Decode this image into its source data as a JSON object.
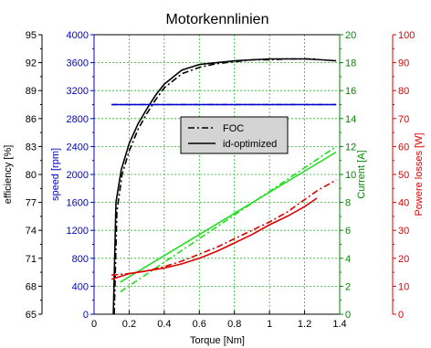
{
  "chart_data": {
    "type": "line",
    "title": "Motorkennlinien",
    "xlabel": "Torque [Nm]",
    "xlim": [
      0,
      1.4
    ],
    "xticks": [
      "0",
      "0.2",
      "0.4",
      "0.6",
      "0.8",
      "1",
      "1.2",
      "1.4"
    ],
    "xtick_values": [
      0,
      0.2,
      0.4,
      0.6,
      0.8,
      1.0,
      1.2,
      1.4
    ],
    "grid": true,
    "legend_position": "center",
    "axes": {
      "efficiency": {
        "label": "efficiency [%]",
        "lim": [
          65,
          95
        ],
        "ticks": [
          "65",
          "68",
          "71",
          "74",
          "77",
          "80",
          "83",
          "86",
          "89",
          "92",
          "95"
        ],
        "color": "#000000",
        "side": "left-outer"
      },
      "speed": {
        "label": "speed [rpm]",
        "lim": [
          0,
          4000
        ],
        "ticks": [
          "0",
          "400",
          "800",
          "1200",
          "1600",
          "2000",
          "2400",
          "2800",
          "3200",
          "3600",
          "4000"
        ],
        "color": "#0000cc",
        "side": "left-inner"
      },
      "current": {
        "label": "Current [A]",
        "lim": [
          0,
          20
        ],
        "ticks": [
          "0",
          "2",
          "4",
          "6",
          "8",
          "10",
          "12",
          "14",
          "16",
          "18",
          "20"
        ],
        "color": "#008800",
        "side": "right-inner"
      },
      "losses": {
        "label": "Powere losses [W]",
        "lim": [
          0,
          100
        ],
        "ticks": [
          "0",
          "10",
          "20",
          "30",
          "40",
          "50",
          "60",
          "70",
          "80",
          "90",
          "100"
        ],
        "color": "#dd0000",
        "side": "right-outer"
      }
    },
    "legend": [
      {
        "name": "FOC",
        "style": "dashdot"
      },
      {
        "name": "id-optimized",
        "style": "solid"
      }
    ],
    "series": [
      {
        "name": "FOC",
        "quantity": "efficiency",
        "color": "#000000",
        "style": "dashdot",
        "x": [
          0.115,
          0.13,
          0.16,
          0.2,
          0.25,
          0.3,
          0.35,
          0.4,
          0.5,
          0.6,
          0.7,
          0.8,
          0.9,
          1.0,
          1.1,
          1.2,
          1.27
        ],
        "y": [
          65,
          76,
          80,
          82.5,
          84.8,
          86.5,
          88.0,
          89.3,
          90.8,
          91.5,
          91.9,
          92.1,
          92.3,
          92.3,
          92.4,
          92.4,
          92.4
        ]
      },
      {
        "name": "id-optimized",
        "quantity": "efficiency",
        "color": "#000000",
        "style": "solid",
        "x": [
          0.11,
          0.125,
          0.155,
          0.2,
          0.25,
          0.3,
          0.35,
          0.4,
          0.5,
          0.6,
          0.7,
          0.8,
          0.9,
          1.0,
          1.1,
          1.2,
          1.3,
          1.38
        ],
        "y": [
          65,
          77,
          80.5,
          83.3,
          85.4,
          87.0,
          88.5,
          89.7,
          91.2,
          91.8,
          92.0,
          92.2,
          92.3,
          92.4,
          92.4,
          92.4,
          92.3,
          92.2
        ]
      },
      {
        "name": "FOC",
        "quantity": "speed",
        "color": "#0000cc",
        "style": "dashdot",
        "x": [
          0.1,
          1.38
        ],
        "y": [
          3000,
          3000
        ]
      },
      {
        "name": "id-optimized",
        "quantity": "speed",
        "color": "#0000cc",
        "style": "solid",
        "x": [
          0.1,
          1.38
        ],
        "y": [
          3000,
          3000
        ]
      },
      {
        "name": "FOC",
        "quantity": "current",
        "color": "#22dd22",
        "style": "dashdot",
        "x": [
          0.15,
          1.38
        ],
        "y": [
          1.6,
          12.0
        ]
      },
      {
        "name": "id-optimized",
        "quantity": "current",
        "color": "#22dd22",
        "style": "solid",
        "x": [
          0.15,
          1.38
        ],
        "y": [
          2.3,
          11.6
        ]
      },
      {
        "name": "FOC",
        "quantity": "losses",
        "color": "#dd0000",
        "style": "dashdot",
        "x": [
          0.1,
          0.2,
          0.3,
          0.4,
          0.5,
          0.6,
          0.7,
          0.8,
          0.9,
          1.0,
          1.1,
          1.2,
          1.28,
          1.38
        ],
        "y": [
          14,
          14.5,
          15.5,
          17,
          19,
          21.5,
          24,
          27,
          30,
          33,
          36.5,
          41,
          44.5,
          48
        ]
      },
      {
        "name": "id-optimized",
        "quantity": "losses",
        "color": "#dd0000",
        "style": "solid",
        "x": [
          0.1,
          0.2,
          0.3,
          0.4,
          0.5,
          0.6,
          0.7,
          0.8,
          0.9,
          1.0,
          1.1,
          1.2,
          1.27
        ],
        "y": [
          12.5,
          14.5,
          15.5,
          16.5,
          18,
          20,
          22.5,
          25.5,
          28.5,
          32,
          35,
          38.5,
          41.5
        ]
      }
    ]
  }
}
